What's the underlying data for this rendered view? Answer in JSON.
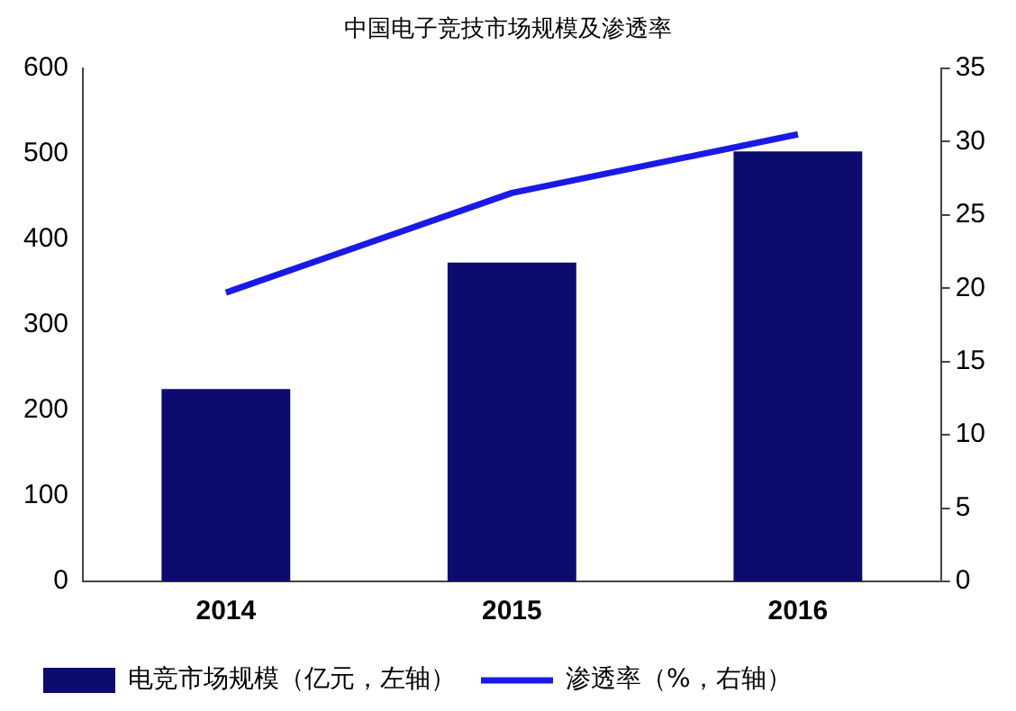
{
  "chart_data": {
    "type": "bar",
    "title": "中国电子竞技市场规模及渗透率",
    "categories": [
      "2014",
      "2015",
      "2016"
    ],
    "series": [
      {
        "name": "电竞市场规模（亿元，左轴）",
        "color": "#0c0c6e",
        "values": [
          225,
          373,
          503
        ]
      },
      {
        "name": "渗透率（%，右轴）",
        "type": "line",
        "axis": "y2",
        "color": "#1a1ae6",
        "values": [
          19.7,
          26.5,
          30.5
        ]
      }
    ],
    "ylim": [
      0,
      600
    ],
    "yticks": [
      0,
      100,
      200,
      300,
      400,
      500,
      600
    ],
    "y2lim": [
      0,
      35
    ],
    "y2ticks": [
      0,
      5,
      10,
      15,
      20,
      25,
      30,
      35
    ],
    "grid": false,
    "legend": "bottom",
    "marker": "none",
    "line_style": "solid"
  }
}
